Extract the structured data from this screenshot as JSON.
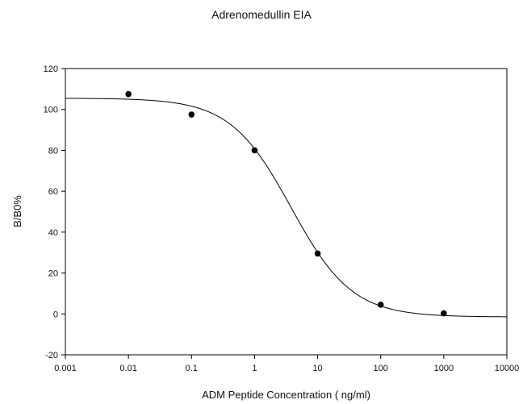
{
  "chart_data": {
    "type": "scatter",
    "title": "Adrenomedullin EIA",
    "xlabel": "ADM Peptide Concentration ( ng/ml)",
    "ylabel": "B/B0%",
    "x_scale": "log",
    "xlim": [
      0.001,
      10000
    ],
    "ylim": [
      -20,
      120
    ],
    "x_ticks": [
      "0.001",
      "0.01",
      "0.1",
      "1",
      "10",
      "100",
      "1000",
      "10000"
    ],
    "x_tick_values": [
      0.001,
      0.01,
      0.1,
      1,
      10,
      100,
      1000,
      10000
    ],
    "y_ticks": [
      "-20",
      "0",
      "20",
      "40",
      "60",
      "80",
      "100",
      "120"
    ],
    "y_tick_values": [
      -20,
      0,
      20,
      40,
      60,
      80,
      100,
      120
    ],
    "grid": false,
    "series": [
      {
        "type": "scatter",
        "x": [
          0.01,
          0.1,
          1,
          10,
          100,
          1000
        ],
        "y": [
          107.5,
          97.5,
          80,
          29.5,
          4.5,
          0.3
        ]
      },
      {
        "type": "line",
        "fit": "4PL",
        "parameters": {
          "top": 105.5,
          "bottom": -1.5,
          "ec50": 3.8,
          "hill": 0.9
        }
      }
    ],
    "colors": {
      "points": "#000000",
      "curve": "#000000",
      "axes": "#000000"
    }
  }
}
